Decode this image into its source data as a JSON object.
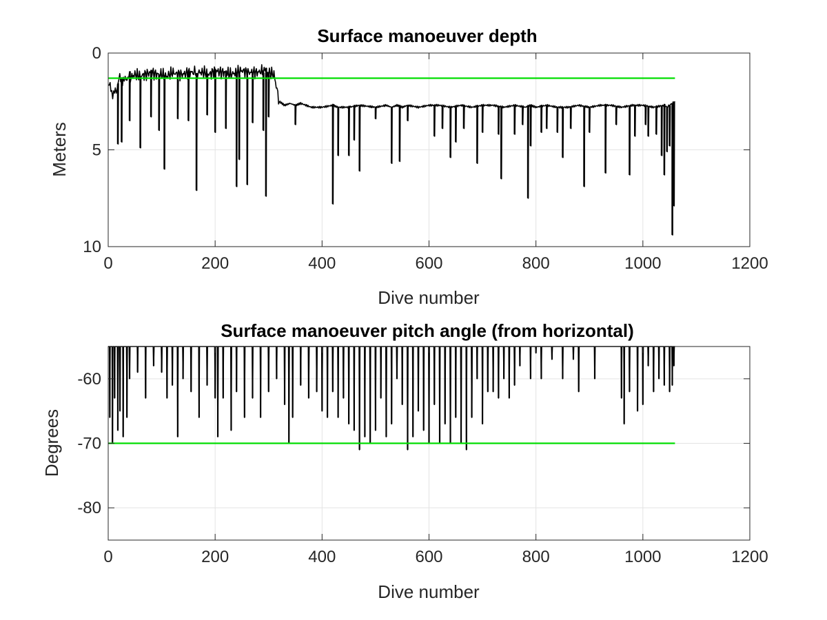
{
  "chart_data": [
    {
      "type": "line",
      "title": "Surface manoeuver depth",
      "xlabel": "Dive number",
      "ylabel": "Meters",
      "xlim": [
        0,
        1200
      ],
      "ylim": [
        0,
        10
      ],
      "y_reversed": true,
      "grid": true,
      "xticks": [
        "0",
        "200",
        "400",
        "600",
        "800",
        "1000",
        "1200"
      ],
      "yticks": [
        "0",
        "5",
        "10"
      ],
      "series": [
        {
          "color": "#000000",
          "x": [
            1,
            5,
            10,
            15,
            20,
            25,
            30,
            35,
            40,
            50,
            60,
            70,
            80,
            90,
            100,
            110,
            120,
            130,
            140,
            150,
            160,
            165,
            170,
            180,
            190,
            200,
            210,
            220,
            230,
            240,
            250,
            260,
            270,
            280,
            290,
            295,
            300,
            310,
            320,
            330,
            340,
            350,
            360,
            380,
            400,
            420,
            430,
            450,
            470,
            500,
            520,
            530,
            540,
            550,
            560,
            580,
            600,
            620,
            640,
            660,
            680,
            700,
            720,
            740,
            760,
            780,
            790,
            800,
            820,
            840,
            860,
            880,
            900,
            920,
            940,
            960,
            980,
            1000,
            1020,
            1040,
            1045,
            1050,
            1055,
            1060
          ],
          "y_base": [
            1.5,
            1.8,
            2.2,
            1.9,
            1.4,
            1.3,
            1.5,
            1.2,
            1.3,
            1.1,
            1.2,
            1.1,
            1.0,
            1.1,
            1.1,
            1.2,
            1.0,
            1.1,
            1.1,
            1.0,
            1.0,
            1.1,
            1.0,
            1.0,
            1.1,
            0.9,
            1.0,
            1.0,
            1.1,
            1.0,
            0.9,
            1.0,
            1.0,
            1.0,
            0.9,
            1.0,
            1.0,
            1.1,
            2.5,
            2.7,
            2.6,
            2.7,
            2.6,
            2.8,
            2.8,
            2.7,
            2.8,
            2.8,
            2.7,
            2.8,
            2.7,
            2.8,
            2.7,
            2.8,
            2.7,
            2.8,
            2.7,
            2.7,
            2.8,
            2.7,
            2.8,
            2.7,
            2.7,
            2.8,
            2.7,
            2.8,
            2.7,
            2.8,
            2.7,
            2.8,
            2.8,
            2.7,
            2.8,
            2.7,
            2.7,
            2.8,
            2.7,
            2.7,
            2.8,
            2.7,
            2.8,
            2.7,
            2.6,
            2.5
          ],
          "spikes": [
            [
              18,
              4.7
            ],
            [
              25,
              4.6
            ],
            [
              40,
              3.5
            ],
            [
              60,
              4.9
            ],
            [
              80,
              3.3
            ],
            [
              95,
              4.0
            ],
            [
              105,
              6.0
            ],
            [
              130,
              3.4
            ],
            [
              150,
              3.5
            ],
            [
              165,
              7.1
            ],
            [
              185,
              3.2
            ],
            [
              200,
              4.1
            ],
            [
              220,
              3.9
            ],
            [
              240,
              6.9
            ],
            [
              245,
              5.5
            ],
            [
              260,
              6.8
            ],
            [
              270,
              3.6
            ],
            [
              290,
              4.0
            ],
            [
              295,
              7.4
            ],
            [
              300,
              3.3
            ],
            [
              350,
              3.7
            ],
            [
              420,
              7.8
            ],
            [
              430,
              5.3
            ],
            [
              450,
              5.3
            ],
            [
              460,
              4.5
            ],
            [
              470,
              6.1
            ],
            [
              500,
              3.4
            ],
            [
              530,
              5.7
            ],
            [
              545,
              5.6
            ],
            [
              560,
              3.5
            ],
            [
              610,
              4.3
            ],
            [
              625,
              3.9
            ],
            [
              640,
              5.4
            ],
            [
              650,
              4.6
            ],
            [
              665,
              3.9
            ],
            [
              690,
              5.7
            ],
            [
              700,
              4.1
            ],
            [
              730,
              4.2
            ],
            [
              735,
              6.5
            ],
            [
              760,
              4.2
            ],
            [
              775,
              3.7
            ],
            [
              785,
              7.5
            ],
            [
              790,
              4.8
            ],
            [
              810,
              4.1
            ],
            [
              820,
              3.9
            ],
            [
              840,
              4.1
            ],
            [
              850,
              5.4
            ],
            [
              865,
              3.9
            ],
            [
              890,
              6.9
            ],
            [
              900,
              4.1
            ],
            [
              930,
              6.2
            ],
            [
              950,
              3.7
            ],
            [
              975,
              6.3
            ],
            [
              985,
              4.3
            ],
            [
              1005,
              3.7
            ],
            [
              1010,
              4.3
            ],
            [
              1025,
              4.2
            ],
            [
              1035,
              5.3
            ],
            [
              1040,
              6.3
            ],
            [
              1045,
              5.1
            ],
            [
              1050,
              4.8
            ],
            [
              1055,
              9.4
            ],
            [
              1058,
              7.9
            ]
          ]
        },
        {
          "color": "#00dd00",
          "x": [
            0,
            1060
          ],
          "y": [
            1.3,
            1.3
          ]
        }
      ]
    },
    {
      "type": "line",
      "title": "Surface manoeuver pitch angle (from horizontal)",
      "xlabel": "Dive number",
      "ylabel": "Degrees",
      "xlim": [
        0,
        1200
      ],
      "ylim": [
        -85,
        -55
      ],
      "grid": true,
      "xticks": [
        "0",
        "200",
        "400",
        "600",
        "800",
        "1000",
        "1200"
      ],
      "yticks": [
        "-60",
        "-70",
        "-80"
      ],
      "series": [
        {
          "color": "#000000",
          "baseline": -55,
          "spikes": [
            [
              3,
              -66
            ],
            [
              8,
              -70
            ],
            [
              12,
              -63
            ],
            [
              18,
              -68
            ],
            [
              22,
              -65
            ],
            [
              28,
              -69
            ],
            [
              35,
              -66
            ],
            [
              40,
              -60
            ],
            [
              55,
              -59
            ],
            [
              70,
              -63
            ],
            [
              85,
              -58
            ],
            [
              100,
              -59
            ],
            [
              110,
              -63
            ],
            [
              120,
              -61
            ],
            [
              130,
              -69
            ],
            [
              140,
              -60
            ],
            [
              155,
              -62
            ],
            [
              170,
              -66
            ],
            [
              185,
              -61
            ],
            [
              200,
              -63
            ],
            [
              205,
              -69
            ],
            [
              215,
              -63
            ],
            [
              230,
              -68
            ],
            [
              240,
              -62
            ],
            [
              255,
              -66
            ],
            [
              270,
              -63
            ],
            [
              285,
              -66
            ],
            [
              300,
              -62
            ],
            [
              315,
              -60
            ],
            [
              330,
              -64
            ],
            [
              338,
              -70
            ],
            [
              345,
              -66
            ],
            [
              360,
              -61
            ],
            [
              375,
              -63
            ],
            [
              390,
              -62
            ],
            [
              400,
              -65
            ],
            [
              410,
              -66
            ],
            [
              420,
              -62
            ],
            [
              430,
              -66
            ],
            [
              440,
              -63
            ],
            [
              450,
              -67
            ],
            [
              460,
              -68
            ],
            [
              470,
              -71
            ],
            [
              480,
              -69
            ],
            [
              490,
              -70
            ],
            [
              500,
              -68
            ],
            [
              510,
              -63
            ],
            [
              520,
              -69
            ],
            [
              530,
              -67
            ],
            [
              540,
              -60
            ],
            [
              550,
              -64
            ],
            [
              560,
              -71
            ],
            [
              570,
              -69
            ],
            [
              580,
              -65
            ],
            [
              590,
              -68
            ],
            [
              600,
              -70
            ],
            [
              610,
              -64
            ],
            [
              620,
              -70
            ],
            [
              630,
              -67
            ],
            [
              640,
              -70
            ],
            [
              650,
              -66
            ],
            [
              660,
              -70
            ],
            [
              670,
              -71
            ],
            [
              680,
              -66
            ],
            [
              690,
              -60
            ],
            [
              700,
              -67
            ],
            [
              710,
              -62
            ],
            [
              720,
              -62
            ],
            [
              730,
              -63
            ],
            [
              740,
              -60
            ],
            [
              750,
              -63
            ],
            [
              760,
              -61
            ],
            [
              770,
              -58
            ],
            [
              790,
              -60
            ],
            [
              800,
              -56
            ],
            [
              810,
              -60
            ],
            [
              830,
              -57
            ],
            [
              850,
              -60
            ],
            [
              870,
              -57
            ],
            [
              880,
              -62
            ],
            [
              910,
              -60
            ],
            [
              960,
              -63
            ],
            [
              965,
              -67
            ],
            [
              975,
              -62
            ],
            [
              990,
              -65
            ],
            [
              1000,
              -64
            ],
            [
              1010,
              -58
            ],
            [
              1020,
              -62
            ],
            [
              1030,
              -60
            ],
            [
              1040,
              -61
            ],
            [
              1050,
              -62
            ],
            [
              1055,
              -61
            ],
            [
              1058,
              -58
            ]
          ]
        },
        {
          "color": "#00dd00",
          "x": [
            0,
            1060
          ],
          "y": [
            -70,
            -70
          ]
        }
      ]
    }
  ]
}
